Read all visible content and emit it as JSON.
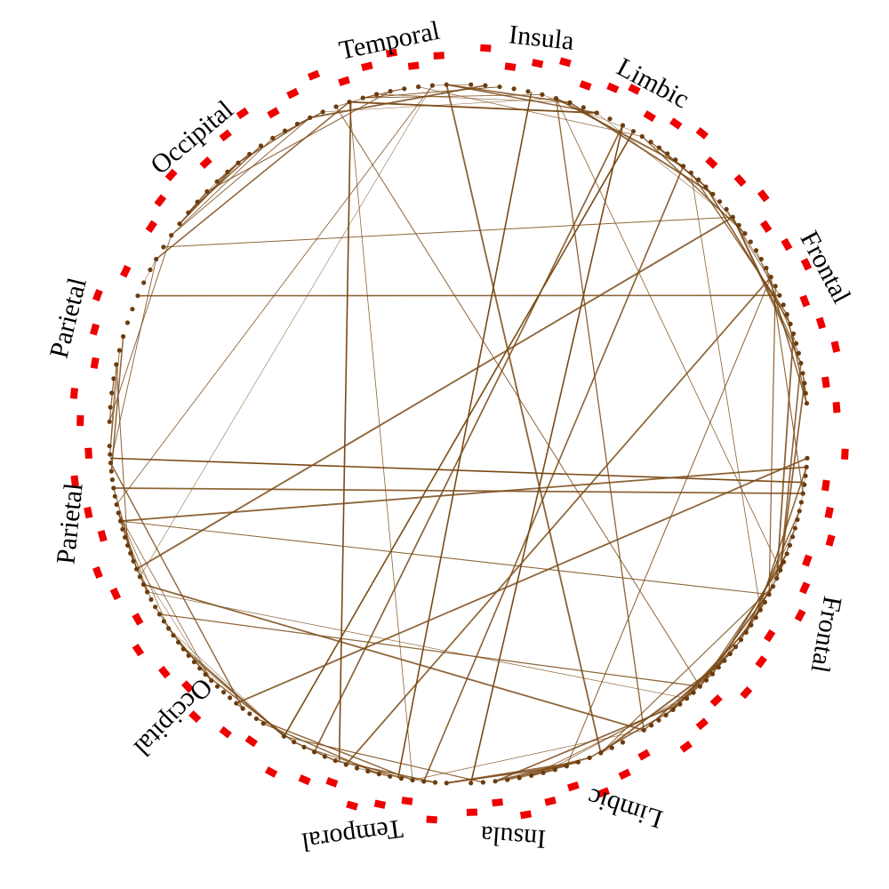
{
  "colors": {
    "background": "#ffffff",
    "edge": "#7a4a16",
    "node": "#6b3c0f",
    "marker": "#ee0000",
    "label": "#000000"
  },
  "region_labels": [
    "Temporal",
    "Insula",
    "Limbic",
    "Occipital",
    "Frontal",
    "Parietal",
    "Parietal",
    "Frontal",
    "Occipital",
    "Temporal",
    "Insula",
    "Limbic"
  ]
}
